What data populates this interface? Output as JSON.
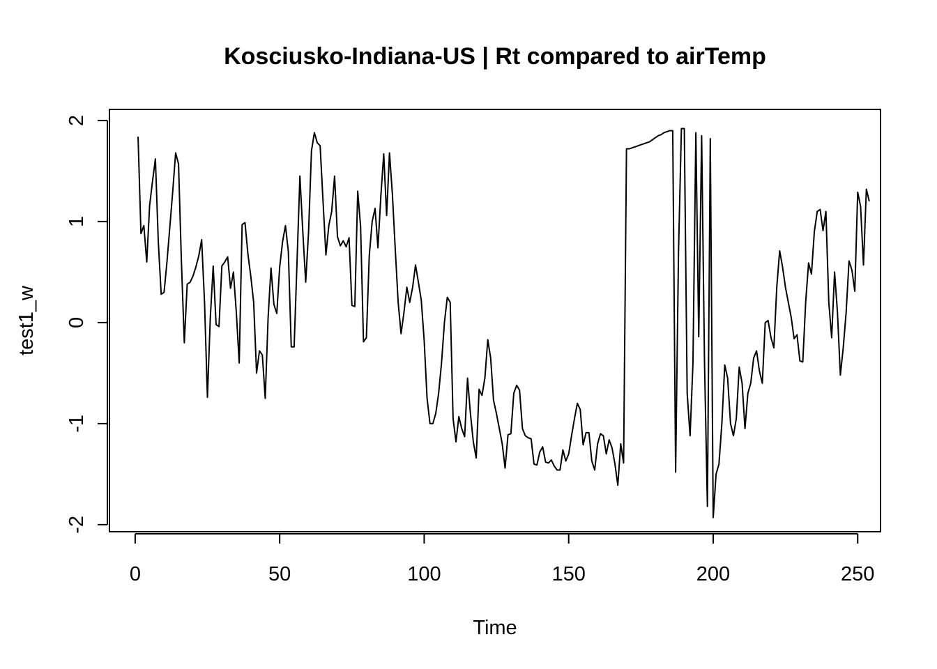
{
  "chart_data": {
    "type": "line",
    "title": "Kosciusko-Indiana-US | Rt compared to airTemp",
    "xlabel": "Time",
    "ylabel": "test1_w",
    "xlim": [
      -8.9,
      257.9
    ],
    "ylim": [
      -2.07,
      2.11
    ],
    "x_ticks": [
      0,
      50,
      100,
      150,
      200,
      250
    ],
    "y_ticks": [
      -2,
      -1,
      0,
      1,
      2
    ],
    "x_tick_labels": [
      "0",
      "50",
      "100",
      "150",
      "200",
      "250"
    ],
    "y_tick_labels": [
      "-2",
      "-1",
      "0",
      "1",
      "2"
    ],
    "grid": false,
    "line_color": "#000000",
    "series": [
      {
        "x_start": 1,
        "values": [
          1.84,
          0.88,
          0.96,
          0.6,
          1.16,
          1.4,
          1.62,
          0.8,
          0.28,
          0.3,
          0.6,
          0.95,
          1.3,
          1.68,
          1.57,
          0.6,
          -0.2,
          0.38,
          0.4,
          0.46,
          0.55,
          0.66,
          0.82,
          0.2,
          -0.74,
          0.05,
          0.56,
          -0.02,
          -0.04,
          0.56,
          0.6,
          0.65,
          0.34,
          0.5,
          0.1,
          -0.4,
          0.97,
          0.99,
          0.68,
          0.46,
          0.2,
          -0.5,
          -0.28,
          -0.32,
          -0.75,
          0.05,
          0.54,
          0.18,
          0.09,
          0.55,
          0.8,
          0.96,
          0.7,
          -0.24,
          -0.24,
          0.6,
          1.45,
          0.9,
          0.4,
          0.9,
          1.7,
          1.88,
          1.78,
          1.75,
          1.2,
          0.67,
          0.96,
          1.1,
          1.45,
          0.85,
          0.76,
          0.81,
          0.75,
          0.84,
          0.17,
          0.16,
          1.3,
          0.95,
          -0.19,
          -0.15,
          0.66,
          1.0,
          1.13,
          0.74,
          1.25,
          1.67,
          1.06,
          1.68,
          1.27,
          0.72,
          0.2,
          -0.11,
          0.1,
          0.35,
          0.2,
          0.35,
          0.57,
          0.4,
          0.22,
          -0.18,
          -0.75,
          -1.0,
          -1.0,
          -0.9,
          -0.7,
          -0.4,
          0.0,
          0.25,
          0.2,
          -0.95,
          -1.18,
          -0.93,
          -1.05,
          -1.13,
          -0.55,
          -0.9,
          -1.18,
          -1.34,
          -0.66,
          -0.72,
          -0.55,
          -0.17,
          -0.35,
          -0.77,
          -0.9,
          -1.05,
          -1.2,
          -1.44,
          -1.11,
          -1.1,
          -0.7,
          -0.62,
          -0.67,
          -1.05,
          -1.12,
          -1.14,
          -1.15,
          -1.4,
          -1.41,
          -1.28,
          -1.23,
          -1.38,
          -1.39,
          -1.36,
          -1.42,
          -1.46,
          -1.46,
          -1.26,
          -1.37,
          -1.3,
          -1.12,
          -0.95,
          -0.8,
          -0.86,
          -1.21,
          -1.09,
          -1.09,
          -1.37,
          -1.46,
          -1.2,
          -1.1,
          -1.12,
          -1.3,
          -1.16,
          -1.24,
          -1.4,
          -1.61,
          -1.2,
          -1.39,
          1.72,
          1.72,
          1.73,
          1.74,
          1.75,
          1.76,
          1.77,
          1.78,
          1.79,
          1.81,
          1.83,
          1.85,
          1.86,
          1.88,
          1.89,
          1.9,
          1.9,
          -1.48,
          0.7,
          1.92,
          1.92,
          -0.7,
          -1.12,
          -0.4,
          1.88,
          -0.14,
          1.85,
          -0.4,
          -1.82,
          1.82,
          -1.93,
          -1.5,
          -1.4,
          -1.0,
          -0.42,
          -0.55,
          -1.0,
          -1.12,
          -0.95,
          -0.44,
          -0.6,
          -1.05,
          -0.7,
          -0.6,
          -0.35,
          -0.28,
          -0.48,
          -0.6,
          0.0,
          0.02,
          -0.15,
          -0.25,
          0.35,
          0.71,
          0.55,
          0.35,
          0.2,
          0.05,
          -0.16,
          -0.12,
          -0.38,
          -0.39,
          0.2,
          0.59,
          0.48,
          0.9,
          1.1,
          1.12,
          0.91,
          1.1,
          0.2,
          -0.15,
          0.5,
          0.1,
          -0.52,
          -0.25,
          0.1,
          0.61,
          0.52,
          0.31,
          1.29,
          1.15,
          0.57,
          1.32,
          1.2
        ]
      }
    ]
  }
}
